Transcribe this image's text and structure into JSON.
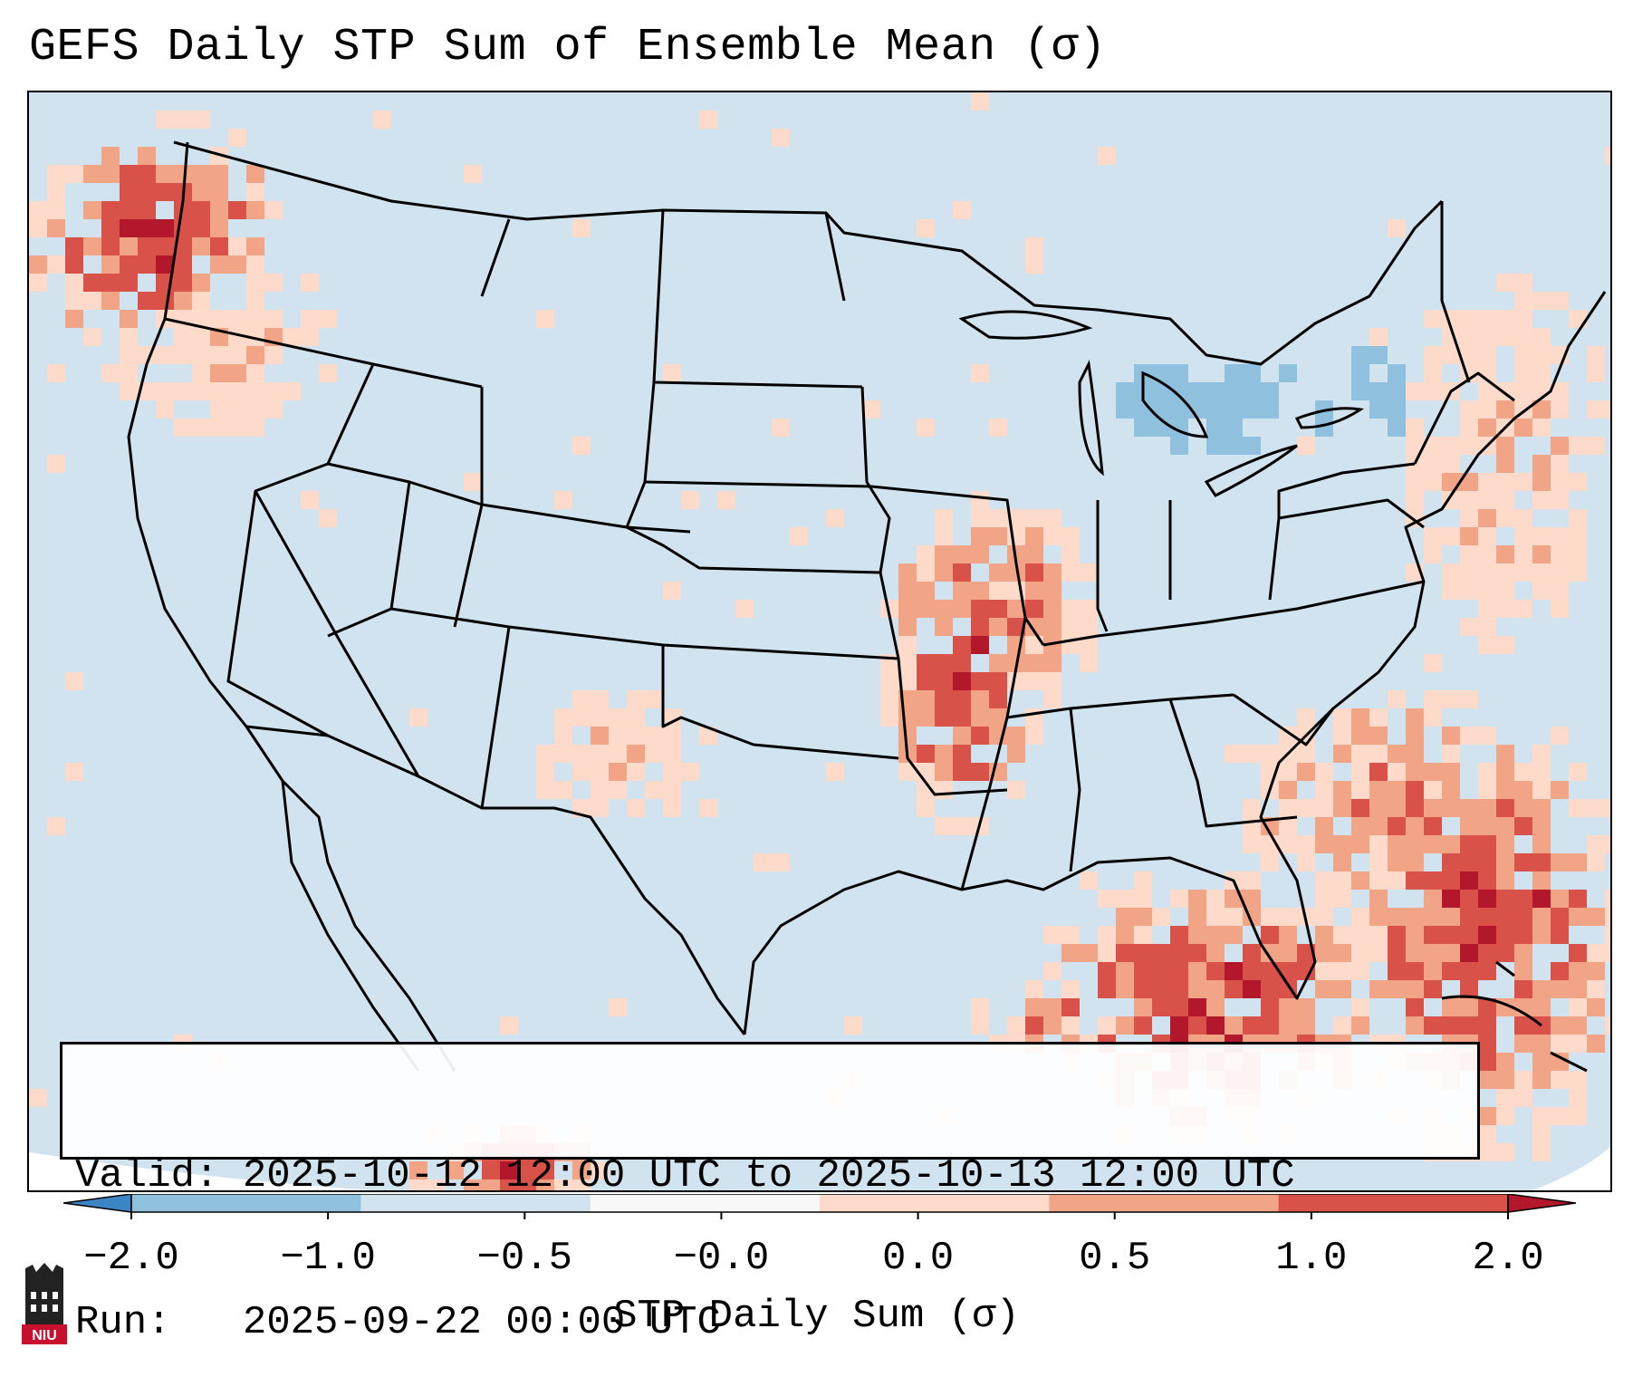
{
  "title": "GEFS Daily STP Sum of Ensemble Mean (σ)",
  "info_box": {
    "valid": "Valid: 2025-10-12 12:00 UTC to 2025-10-13 12:00 UTC",
    "run": "Run:   2025-09-22 00:00 UTC"
  },
  "colorbar": {
    "label": "STP Daily Sum (σ)",
    "ticks": [
      "−2.0",
      "−1.0",
      "−0.5",
      "−0.0",
      "0.0",
      "0.5",
      "1.0",
      "2.0"
    ],
    "colors": [
      "#3d84c4",
      "#8fc0de",
      "#d0e3ef",
      "#f8f8f8",
      "#fddac9",
      "#f1a486",
      "#d8524a",
      "#b2172b"
    ]
  },
  "logo": {
    "text": "NIU"
  },
  "map": {
    "background_color": "#d0e3ef",
    "hotspots": [
      {
        "region": "Pacific Northwest",
        "level": 2
      },
      {
        "region": "Iowa / Missouri / Arkansas",
        "level": 3
      },
      {
        "region": "Gulf of Mexico / Florida",
        "level": 3
      },
      {
        "region": "Western Atlantic",
        "level": 3
      },
      {
        "region": "Great Lakes",
        "level": -1
      }
    ]
  }
}
